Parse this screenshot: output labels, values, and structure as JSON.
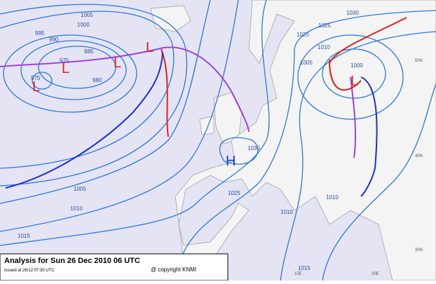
{
  "title": "Analysis for Sun 26 Dec 2010 06 UTC",
  "issued": "Issued at 26/12 07:30 UTC",
  "copyright": "@ copyright KNMI",
  "pressure_centers": [
    {
      "label": "L"
    },
    {
      "label": "L"
    },
    {
      "label": "L"
    },
    {
      "label": "L"
    },
    {
      "label": "L"
    },
    {
      "label": "H"
    }
  ],
  "isobar_labels": [
    "1005",
    "1000",
    "995",
    "990",
    "985",
    "975",
    "975",
    "980",
    "1030",
    "1025",
    "1020",
    "1010",
    "1005",
    "1000",
    "1030",
    "1025",
    "1005",
    "1010",
    "1015",
    "1010",
    "1010",
    "1015"
  ],
  "grid_labels": [
    "50N",
    "40N",
    "30N",
    "10E",
    "20E"
  ]
}
